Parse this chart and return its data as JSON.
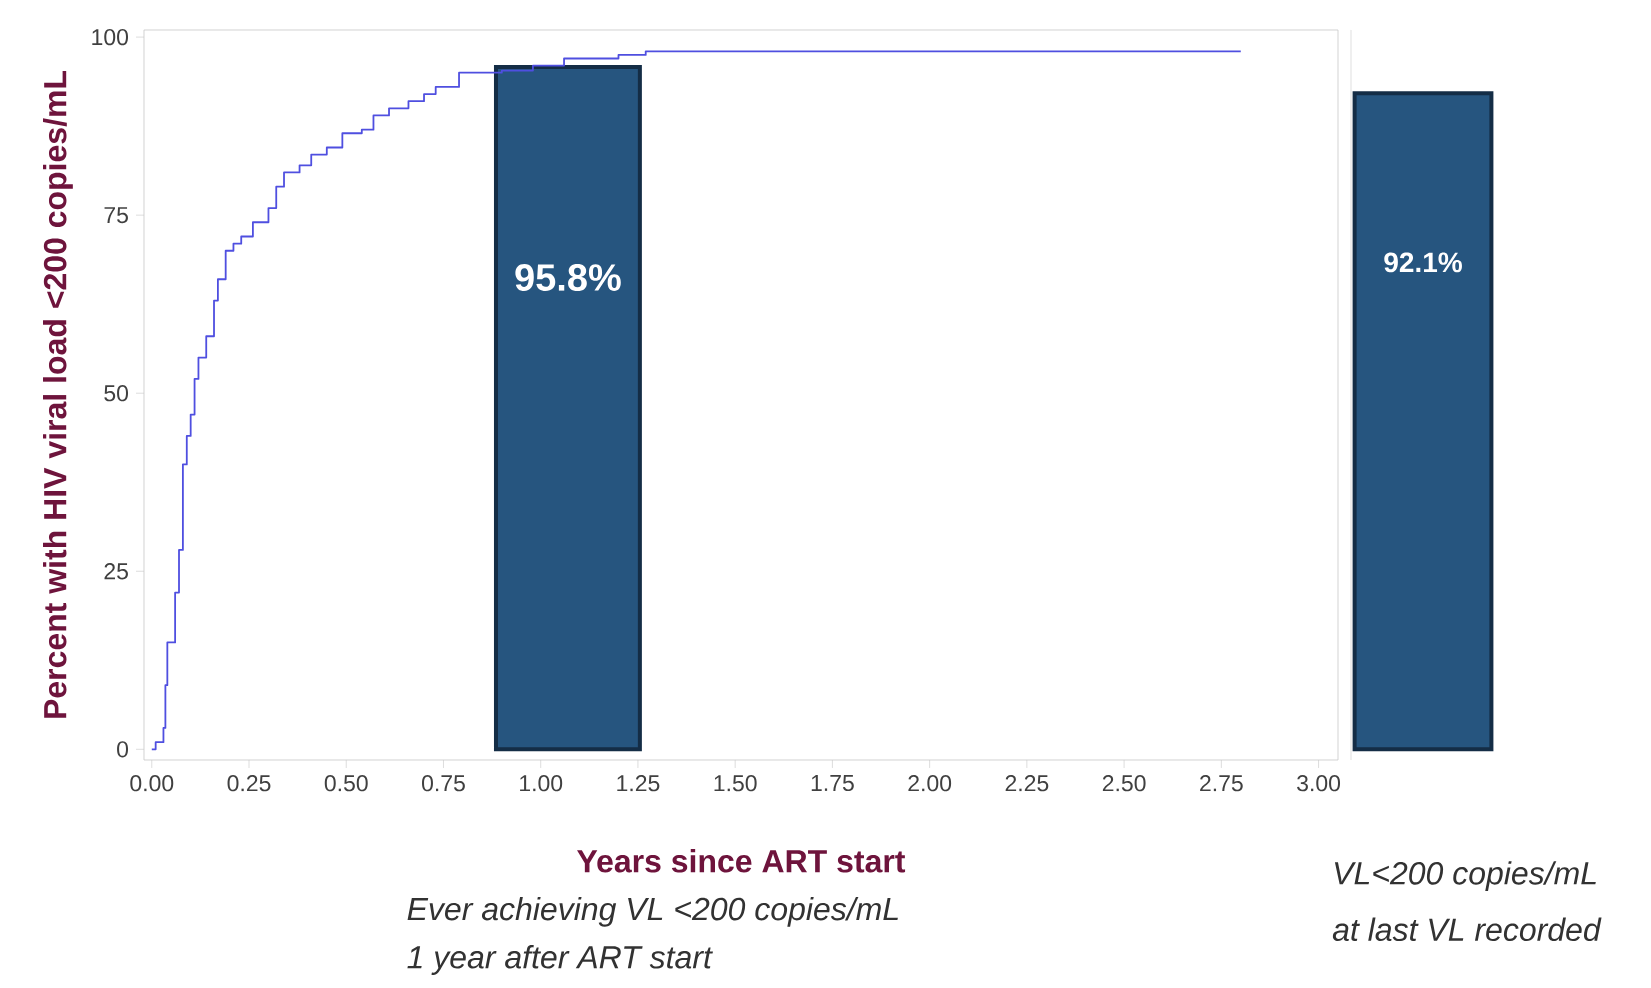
{
  "chart_data": [
    {
      "type": "line",
      "xlabel": "Years since ART start",
      "ylabel": "Percent with HIV viral load <200 copies/mL",
      "xlim": [
        -0.02,
        3.05
      ],
      "ylim": [
        -1.5,
        101
      ],
      "xticks": [
        {
          "value": 0,
          "label": "0.00"
        },
        {
          "value": 0.25,
          "label": "0.25"
        },
        {
          "value": 0.5,
          "label": "0.50"
        },
        {
          "value": 0.75,
          "label": "0.75"
        },
        {
          "value": 1,
          "label": "1.00"
        },
        {
          "value": 1.25,
          "label": "1.25"
        },
        {
          "value": 1.5,
          "label": "1.50"
        },
        {
          "value": 1.75,
          "label": "1.75"
        },
        {
          "value": 2,
          "label": "2.00"
        },
        {
          "value": 2.25,
          "label": "2.25"
        },
        {
          "value": 2.5,
          "label": "2.50"
        },
        {
          "value": 2.75,
          "label": "2.75"
        },
        {
          "value": 3,
          "label": "3.00"
        }
      ],
      "yticks": [
        0,
        25,
        50,
        75,
        100
      ],
      "series": [
        {
          "type": "step",
          "color": "#4f4fe0",
          "x": [
            0,
            0.01,
            0.03,
            0.035,
            0.04,
            0.06,
            0.07,
            0.08,
            0.09,
            0.1,
            0.11,
            0.12,
            0.14,
            0.16,
            0.17,
            0.19,
            0.21,
            0.23,
            0.26,
            0.3,
            0.32,
            0.34,
            0.38,
            0.41,
            0.45,
            0.49,
            0.54,
            0.57,
            0.61,
            0.66,
            0.7,
            0.73,
            0.79,
            0.9,
            0.98,
            1.06,
            1.2,
            1.27,
            2.8
          ],
          "values": [
            0,
            1,
            3,
            9,
            15,
            22,
            28,
            40,
            44,
            47,
            52,
            55,
            58,
            63,
            66,
            70,
            71,
            72,
            74,
            76,
            79,
            81,
            82,
            83.5,
            84.5,
            86.5,
            87,
            89,
            90,
            91,
            92,
            93,
            95,
            95.3,
            96,
            97,
            97.5,
            98,
            98
          ]
        },
        {
          "type": "bar",
          "color": "#26557f",
          "x": [
            1.07
          ],
          "values": [
            95.8
          ],
          "value_labels": [
            "95.8%"
          ]
        }
      ],
      "annotations": [
        "Ever achieving VL <200 copies/mL",
        "1 year after ART start"
      ]
    },
    {
      "type": "bar",
      "categories": [
        null
      ],
      "values": [
        92.1
      ],
      "value_labels": [
        "92.1%"
      ],
      "color": "#26557f",
      "ylim": [
        -1.5,
        101
      ],
      "tick_labels": false,
      "annotations": [
        "VL<200 copies/mL",
        "at last VL recorded"
      ]
    }
  ]
}
